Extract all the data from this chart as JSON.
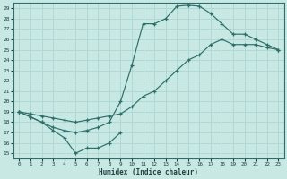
{
  "xlabel": "Humidex (Indice chaleur)",
  "xlim": [
    -0.5,
    23.5
  ],
  "ylim": [
    14.5,
    29.5
  ],
  "xticks": [
    0,
    1,
    2,
    3,
    4,
    5,
    6,
    7,
    8,
    9,
    10,
    11,
    12,
    13,
    14,
    15,
    16,
    17,
    18,
    19,
    20,
    21,
    22,
    23
  ],
  "yticks": [
    15,
    16,
    17,
    18,
    19,
    20,
    21,
    22,
    23,
    24,
    25,
    26,
    27,
    28,
    29
  ],
  "bg_color": "#c8e8e4",
  "line_color": "#2e6e68",
  "grid_color": "#b0d8d4",
  "line1_x": [
    0,
    1,
    2,
    3,
    4,
    5,
    6,
    7,
    8,
    9
  ],
  "line1_y": [
    19.0,
    18.5,
    18.0,
    17.2,
    16.5,
    15.0,
    15.5,
    15.5,
    16.0,
    17.0
  ],
  "line2_x": [
    0,
    1,
    2,
    3,
    4,
    5,
    6,
    7,
    8,
    9,
    10,
    11,
    12,
    13,
    14,
    15,
    16,
    17,
    18,
    19,
    20,
    21,
    22,
    23
  ],
  "line2_y": [
    19.0,
    18.8,
    18.6,
    18.4,
    18.2,
    18.0,
    18.2,
    18.4,
    18.6,
    18.8,
    19.5,
    20.5,
    21.0,
    22.0,
    23.0,
    24.0,
    24.5,
    25.5,
    26.0,
    25.5,
    25.5,
    25.5,
    25.2,
    25.0
  ],
  "line3_x": [
    0,
    1,
    2,
    3,
    4,
    5,
    6,
    7,
    8,
    9,
    10,
    11,
    12,
    13,
    14,
    15,
    16,
    17,
    18,
    19,
    20,
    21,
    22,
    23
  ],
  "line3_y": [
    19.0,
    18.5,
    18.0,
    17.5,
    17.2,
    17.0,
    17.2,
    17.5,
    18.0,
    20.0,
    23.5,
    27.5,
    27.5,
    28.0,
    29.2,
    29.3,
    29.2,
    28.5,
    27.5,
    26.5,
    26.5,
    26.0,
    25.5,
    25.0
  ]
}
